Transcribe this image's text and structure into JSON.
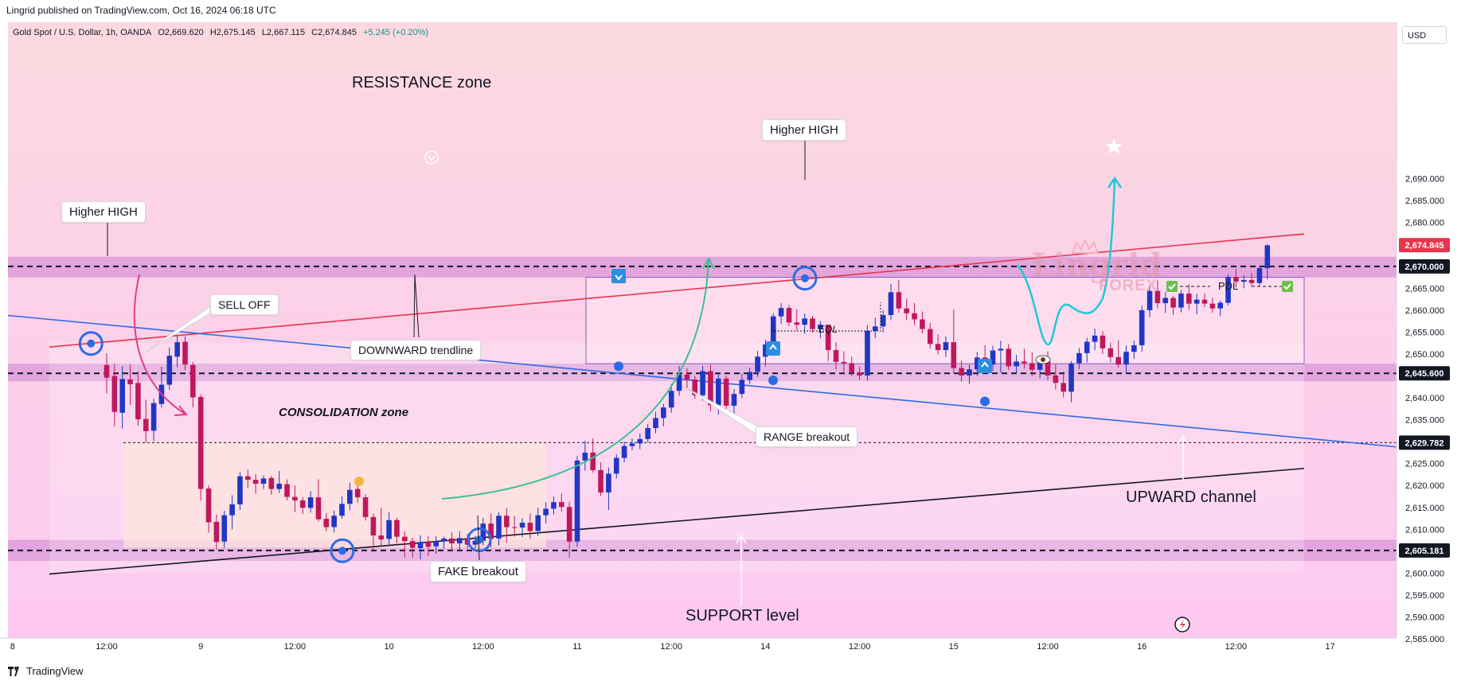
{
  "header": {
    "publisher_line": "Lingrid published on TradingView.com, Oct 16, 2024 06:18 UTC"
  },
  "ohlc": {
    "symbol": "Gold Spot / U.S. Dollar, 1h, OANDA",
    "open": "O2,669.620",
    "high": "H2,675.145",
    "low": "L2,667.115",
    "close": "C2,674.845",
    "change": "+5.245 (+0.20%)"
  },
  "price_axis": {
    "currency": "USD"
  },
  "footer": {
    "brand": "TradingView"
  },
  "annotations": {
    "resistance_zone": "RESISTANCE zone",
    "higher_high_left": "Higher HIGH",
    "higher_high_top": "Higher HIGH",
    "sell_off": "SELL OFF",
    "downward_trendline": "DOWNWARD trendline",
    "consolidation_zone": "CONSOLIDATION zone",
    "fake_breakout": "FAKE breakout",
    "support_level": "SUPPORT level",
    "range_breakout": "RANGE breakout",
    "upward_channel": "UPWARD channel",
    "eql": "EQL",
    "pdl": "PDL",
    "watermark_main": "Lingrid",
    "watermark_sub": "FOREX"
  },
  "colors": {
    "bull": "#2136c4",
    "bear": "#c0175d",
    "resistance_line": "#e8344d",
    "downtrend_line": "#2d6be6",
    "channel_line": "#131722",
    "zone_fill": "#d896d8",
    "background_top": "#fcd9e0",
    "background_bottom": "#fdc8f2"
  },
  "chart_data": {
    "type": "candlestick",
    "instrument": "Gold Spot / U.S. Dollar",
    "timeframe": "1h",
    "y_axis": {
      "currency": "USD",
      "range": [
        2583,
        2697
      ],
      "ticks": [
        2585,
        2590,
        2595,
        2600,
        2605,
        2610,
        2615,
        2620,
        2625,
        2630,
        2635,
        2640,
        2645,
        2650,
        2655,
        2660,
        2665,
        2670,
        2675,
        2680,
        2685,
        2690
      ],
      "tick_labels": [
        "2,585.000",
        "2,590.000",
        "2,595.000",
        "2,600.000",
        "2,605.000",
        "2,610.000",
        "2,615.000",
        "2,620.000",
        "2,625.000",
        "2,630.000",
        "2,635.000",
        "2,640.000",
        "2,645.000",
        "2,650.000",
        "2,655.000",
        "2,660.000",
        "2,665.000",
        "2,670.000",
        "2,675.000",
        "2,680.000",
        "2,685.000",
        "2,690.000"
      ]
    },
    "x_axis": {
      "tick_labels": [
        "8",
        "12:00",
        "9",
        "12:00",
        "10",
        "12:00",
        "11",
        "12:00",
        "14",
        "12:00",
        "15",
        "12:00",
        "16",
        "12:00",
        "17"
      ],
      "tick_times": [
        0,
        12,
        24,
        36,
        48,
        60,
        72,
        84,
        96,
        108,
        120,
        132,
        144,
        156,
        168
      ]
    },
    "price_labels": [
      {
        "value": 2674.845,
        "text": "2,674.845",
        "style": "current"
      },
      {
        "value": 2670.0,
        "text": "2,670.000",
        "style": "level"
      },
      {
        "value": 2645.6,
        "text": "2,645.600",
        "style": "level"
      },
      {
        "value": 2629.782,
        "text": "2,629.782",
        "style": "level"
      },
      {
        "value": 2605.181,
        "text": "2,605.181",
        "style": "level"
      }
    ],
    "horizontal_levels": [
      2670.0,
      2645.6,
      2605.181
    ],
    "zones": [
      {
        "name": "resistance",
        "from": 2667.5,
        "to": 2672.2
      },
      {
        "name": "mid-range",
        "from": 2643.8,
        "to": 2647.8
      },
      {
        "name": "support",
        "from": 2602.8,
        "to": 2607.6
      }
    ],
    "candles": [
      [
        0,
        2647.5,
        2650.2,
        2641.0,
        2644.6
      ],
      [
        1,
        2645.0,
        2647.8,
        2633.5,
        2636.8
      ],
      [
        2,
        2636.6,
        2647.2,
        2633.0,
        2644.3
      ],
      [
        3,
        2644.2,
        2647.6,
        2638.4,
        2643.1
      ],
      [
        4,
        2643.4,
        2646.0,
        2633.6,
        2635.1
      ],
      [
        5,
        2635.2,
        2639.6,
        2629.8,
        2632.4
      ],
      [
        6,
        2632.5,
        2639.8,
        2630.2,
        2638.8
      ],
      [
        7,
        2638.6,
        2647.1,
        2637.8,
        2643.0
      ],
      [
        8,
        2643.0,
        2651.5,
        2641.8,
        2649.6
      ],
      [
        9,
        2649.4,
        2654.3,
        2647.0,
        2652.7
      ],
      [
        10,
        2652.8,
        2654.0,
        2646.3,
        2647.6
      ],
      [
        11,
        2647.5,
        2648.2,
        2637.8,
        2640.1
      ],
      [
        12,
        2640.2,
        2640.8,
        2616.5,
        2619.2
      ],
      [
        13,
        2619.3,
        2620.0,
        2609.2,
        2611.6
      ],
      [
        14,
        2611.7,
        2613.4,
        2605.4,
        2607.1
      ],
      [
        15,
        2607.2,
        2614.2,
        2605.8,
        2613.2
      ],
      [
        16,
        2613.2,
        2617.8,
        2610.0,
        2615.7
      ],
      [
        17,
        2615.7,
        2623.0,
        2614.4,
        2622.1
      ],
      [
        18,
        2622.1,
        2623.6,
        2619.4,
        2621.3
      ],
      [
        19,
        2621.3,
        2622.6,
        2618.1,
        2620.4
      ],
      [
        20,
        2620.4,
        2622.3,
        2619.2,
        2621.6
      ],
      [
        21,
        2621.7,
        2622.2,
        2617.9,
        2619.2
      ],
      [
        22,
        2619.2,
        2623.3,
        2618.3,
        2620.4
      ],
      [
        23,
        2620.3,
        2621.4,
        2616.6,
        2617.4
      ],
      [
        24,
        2617.4,
        2620.0,
        2614.0,
        2616.6
      ],
      [
        25,
        2616.6,
        2617.3,
        2613.5,
        2614.9
      ],
      [
        26,
        2614.9,
        2618.7,
        2613.8,
        2617.3
      ],
      [
        27,
        2617.3,
        2621.4,
        2611.8,
        2612.3
      ],
      [
        28,
        2612.4,
        2613.7,
        2609.6,
        2610.5
      ],
      [
        29,
        2610.5,
        2614.3,
        2609.3,
        2613.1
      ],
      [
        30,
        2613.1,
        2617.5,
        2612.4,
        2615.8
      ],
      [
        31,
        2615.8,
        2620.6,
        2614.3,
        2619.0
      ],
      [
        32,
        2619.2,
        2620.5,
        2616.1,
        2617.3
      ],
      [
        33,
        2617.3,
        2618.0,
        2612.0,
        2612.8
      ],
      [
        34,
        2612.8,
        2613.6,
        2604.7,
        2608.6
      ],
      [
        35,
        2608.6,
        2614.9,
        2606.3,
        2607.7
      ],
      [
        36,
        2607.8,
        2613.9,
        2606.3,
        2612.1
      ],
      [
        37,
        2612.1,
        2612.6,
        2606.8,
        2608.3
      ],
      [
        38,
        2608.3,
        2609.5,
        2603.6,
        2607.3
      ],
      [
        39,
        2607.3,
        2608.1,
        2603.5,
        2605.8
      ],
      [
        40,
        2605.7,
        2608.6,
        2603.2,
        2607.1
      ],
      [
        41,
        2607.1,
        2608.4,
        2603.9,
        2606.0
      ],
      [
        42,
        2606.1,
        2608.4,
        2604.4,
        2607.3
      ],
      [
        43,
        2607.3,
        2608.3,
        2605.6,
        2607.9
      ],
      [
        44,
        2607.9,
        2609.3,
        2605.0,
        2606.8
      ],
      [
        45,
        2606.8,
        2609.6,
        2605.1,
        2608.0
      ],
      [
        46,
        2608.0,
        2609.0,
        2605.6,
        2606.5
      ],
      [
        47,
        2606.5,
        2608.5,
        2605.7,
        2607.4
      ],
      [
        48,
        2607.4,
        2612.6,
        2606.4,
        2611.3
      ],
      [
        49,
        2611.3,
        2613.6,
        2605.8,
        2607.8
      ],
      [
        50,
        2607.9,
        2613.9,
        2606.3,
        2613.1
      ],
      [
        51,
        2613.1,
        2614.9,
        2607.0,
        2610.5
      ],
      [
        52,
        2610.5,
        2613.0,
        2608.3,
        2610.4
      ],
      [
        53,
        2610.4,
        2612.5,
        2608.2,
        2611.5
      ],
      [
        54,
        2611.5,
        2613.6,
        2607.8,
        2609.6
      ],
      [
        55,
        2609.6,
        2614.9,
        2608.5,
        2613.2
      ],
      [
        56,
        2613.2,
        2616.2,
        2611.3,
        2614.7
      ],
      [
        57,
        2614.7,
        2617.5,
        2613.4,
        2616.2
      ],
      [
        58,
        2616.2,
        2618.2,
        2614.0,
        2615.1
      ],
      [
        59,
        2615.1,
        2616.3,
        2603.5,
        2607.2
      ],
      [
        60,
        2607.2,
        2626.7,
        2606.0,
        2625.7
      ],
      [
        61,
        2625.7,
        2630.2,
        2623.4,
        2627.5
      ],
      [
        62,
        2627.5,
        2630.7,
        2622.9,
        2623.5
      ],
      [
        63,
        2623.5,
        2625.3,
        2617.6,
        2618.4
      ],
      [
        64,
        2618.4,
        2624.1,
        2614.4,
        2622.7
      ],
      [
        65,
        2622.7,
        2627.1,
        2621.6,
        2626.3
      ],
      [
        66,
        2626.3,
        2630.0,
        2625.3,
        2629.0
      ],
      [
        67,
        2629.0,
        2630.7,
        2628.0,
        2629.6
      ],
      [
        68,
        2629.6,
        2631.9,
        2628.3,
        2630.6
      ],
      [
        69,
        2630.6,
        2634.0,
        2629.8,
        2633.1
      ],
      [
        70,
        2633.1,
        2636.8,
        2631.9,
        2635.4
      ],
      [
        71,
        2635.4,
        2638.6,
        2633.5,
        2637.8
      ],
      [
        72,
        2637.8,
        2643.2,
        2636.6,
        2641.6
      ],
      [
        73,
        2641.6,
        2647.3,
        2640.5,
        2645.3
      ],
      [
        74,
        2645.3,
        2646.8,
        2642.1,
        2644.2
      ],
      [
        75,
        2644.2,
        2645.1,
        2639.8,
        2640.6
      ],
      [
        76,
        2640.6,
        2647.3,
        2639.4,
        2646.1
      ],
      [
        77,
        2646.1,
        2647.6,
        2636.9,
        2638.3
      ],
      [
        78,
        2638.3,
        2645.5,
        2636.2,
        2644.4
      ],
      [
        79,
        2644.4,
        2645.0,
        2637.2,
        2638.2
      ],
      [
        80,
        2638.2,
        2642.0,
        2636.4,
        2640.9
      ],
      [
        81,
        2640.9,
        2645.5,
        2639.9,
        2644.1
      ],
      [
        82,
        2644.1,
        2646.9,
        2643.2,
        2645.9
      ],
      [
        83,
        2645.9,
        2650.7,
        2644.8,
        2649.4
      ],
      [
        84,
        2649.4,
        2653.3,
        2647.2,
        2652.2
      ],
      [
        85,
        2652.2,
        2659.3,
        2651.1,
        2658.6
      ],
      [
        86,
        2658.6,
        2661.6,
        2656.9,
        2660.5
      ],
      [
        87,
        2660.5,
        2661.2,
        2656.4,
        2657.2
      ],
      [
        88,
        2657.2,
        2660.3,
        2655.4,
        2656.7
      ],
      [
        89,
        2656.7,
        2659.2,
        2654.6,
        2658.1
      ],
      [
        90,
        2658.1,
        2658.7,
        2654.9,
        2655.7
      ],
      [
        91,
        2655.7,
        2657.5,
        2653.6,
        2656.7
      ],
      [
        92,
        2656.7,
        2656.3,
        2648.4,
        2650.9
      ],
      [
        93,
        2650.9,
        2652.7,
        2646.5,
        2648.2
      ],
      [
        94,
        2648.2,
        2650.6,
        2645.4,
        2647.9
      ],
      [
        95,
        2647.9,
        2649.4,
        2645.0,
        2645.8
      ],
      [
        96,
        2645.8,
        2647.1,
        2644.1,
        2645.1
      ],
      [
        97,
        2645.1,
        2656.6,
        2643.9,
        2655.3
      ],
      [
        98,
        2655.3,
        2658.3,
        2653.7,
        2656.3
      ],
      [
        99,
        2656.3,
        2660.0,
        2654.9,
        2658.9
      ],
      [
        100,
        2658.9,
        2666.0,
        2657.8,
        2664.1
      ],
      [
        101,
        2664.1,
        2666.9,
        2659.4,
        2660.4
      ],
      [
        102,
        2660.4,
        2662.6,
        2657.7,
        2659.3
      ],
      [
        103,
        2659.3,
        2661.6,
        2656.6,
        2657.9
      ],
      [
        104,
        2657.9,
        2659.7,
        2654.7,
        2655.7
      ],
      [
        105,
        2655.7,
        2657.1,
        2651.2,
        2652.3
      ],
      [
        106,
        2652.3,
        2654.5,
        2649.9,
        2650.9
      ],
      [
        107,
        2650.9,
        2654.0,
        2649.3,
        2652.7
      ],
      [
        108,
        2652.7,
        2660.2,
        2645.7,
        2646.8
      ],
      [
        109,
        2646.8,
        2648.5,
        2643.7,
        2645.1
      ],
      [
        110,
        2645.1,
        2647.6,
        2643.2,
        2646.5
      ],
      [
        111,
        2646.5,
        2650.5,
        2645.0,
        2649.2
      ],
      [
        112,
        2649.2,
        2652.0,
        2646.5,
        2647.6
      ],
      [
        113,
        2647.6,
        2651.9,
        2646.1,
        2650.8
      ],
      [
        114,
        2650.8,
        2653.0,
        2645.7,
        2651.2
      ],
      [
        115,
        2651.2,
        2652.3,
        2646.3,
        2647.2
      ],
      [
        116,
        2647.2,
        2649.8,
        2645.4,
        2648.3
      ],
      [
        117,
        2648.3,
        2651.2,
        2646.7,
        2647.9
      ],
      [
        118,
        2647.9,
        2650.4,
        2645.0,
        2646.4
      ],
      [
        119,
        2646.4,
        2649.7,
        2644.5,
        2648.6
      ],
      [
        120,
        2648.6,
        2650.6,
        2644.0,
        2645.1
      ],
      [
        121,
        2645.1,
        2647.6,
        2641.9,
        2643.4
      ],
      [
        122,
        2643.4,
        2646.0,
        2640.1,
        2641.4
      ],
      [
        123,
        2641.4,
        2648.4,
        2639.0,
        2647.9
      ],
      [
        124,
        2647.9,
        2651.4,
        2646.5,
        2650.2
      ],
      [
        125,
        2650.2,
        2653.7,
        2648.1,
        2652.8
      ],
      [
        126,
        2652.8,
        2655.8,
        2650.9,
        2654.2
      ],
      [
        127,
        2654.2,
        2655.2,
        2650.0,
        2651.3
      ],
      [
        128,
        2651.3,
        2652.6,
        2648.1,
        2649.3
      ],
      [
        129,
        2649.3,
        2653.1,
        2646.9,
        2647.6
      ],
      [
        130,
        2647.6,
        2651.9,
        2645.6,
        2650.5
      ],
      [
        131,
        2650.5,
        2653.1,
        2648.9,
        2652.0
      ],
      [
        132,
        2652.0,
        2661.0,
        2650.5,
        2660.0
      ],
      [
        133,
        2660.0,
        2665.6,
        2658.4,
        2664.4
      ],
      [
        134,
        2664.4,
        2666.8,
        2660.4,
        2661.6
      ],
      [
        135,
        2661.6,
        2664.2,
        2659.4,
        2662.8
      ],
      [
        136,
        2662.8,
        2663.3,
        2658.9,
        2660.6
      ],
      [
        137,
        2660.6,
        2664.6,
        2659.5,
        2663.8
      ],
      [
        138,
        2663.8,
        2665.9,
        2660.1,
        2661.5
      ],
      [
        139,
        2661.5,
        2663.7,
        2659.1,
        2662.4
      ],
      [
        140,
        2662.4,
        2663.8,
        2660.7,
        2661.5
      ],
      [
        141,
        2661.5,
        2662.8,
        2659.4,
        2660.4
      ],
      [
        142,
        2660.4,
        2662.2,
        2658.7,
        2661.7
      ],
      [
        143,
        2661.7,
        2668.2,
        2661.1,
        2667.6
      ],
      [
        144,
        2667.6,
        2669.4,
        2665.2,
        2666.5
      ],
      [
        145,
        2666.5,
        2668.0,
        2665.0,
        2666.9
      ],
      [
        146,
        2666.9,
        2668.5,
        2665.5,
        2666.2
      ],
      [
        147,
        2666.2,
        2670.0,
        2665.6,
        2669.6
      ],
      [
        148,
        2669.6,
        2675.1,
        2667.1,
        2674.8
      ]
    ]
  }
}
